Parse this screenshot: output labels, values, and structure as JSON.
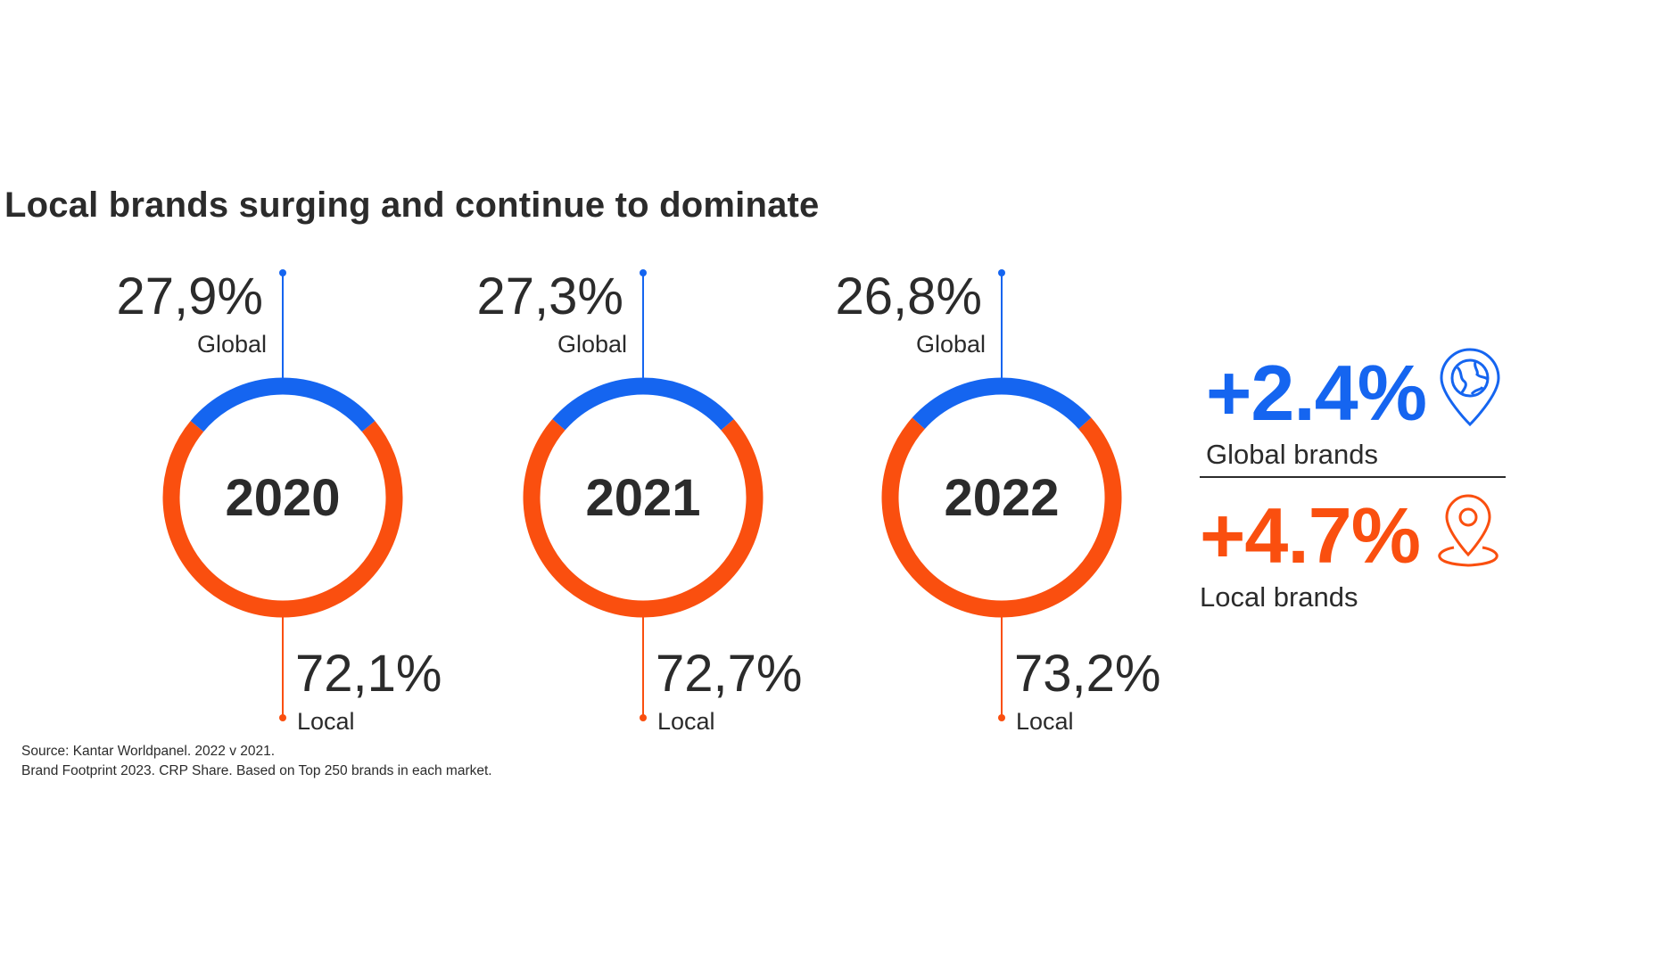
{
  "title": "Local brands surging and continue to dominate",
  "colors": {
    "global": "#1565f0",
    "local": "#fa4f0f",
    "text": "#2b2b2b"
  },
  "chart_data": [
    {
      "type": "pie",
      "center_label": "2020",
      "slices": [
        {
          "label": "Global",
          "value": 27.9,
          "value_label": "27,9%"
        },
        {
          "label": "Local",
          "value": 72.1,
          "value_label": "72,1%"
        }
      ]
    },
    {
      "type": "pie",
      "center_label": "2021",
      "slices": [
        {
          "label": "Global",
          "value": 27.3,
          "value_label": "27,3%"
        },
        {
          "label": "Local",
          "value": 72.7,
          "value_label": "72,7%"
        }
      ]
    },
    {
      "type": "pie",
      "center_label": "2022",
      "slices": [
        {
          "label": "Global",
          "value": 26.8,
          "value_label": "26,8%"
        },
        {
          "label": "Local",
          "value": 73.2,
          "value_label": "73,2%"
        }
      ]
    }
  ],
  "summary": {
    "global": {
      "change": "+2.4%",
      "label": "Global brands",
      "icon": "globe-pin-icon"
    },
    "local": {
      "change": "+4.7%",
      "label": "Local brands",
      "icon": "location-pin-icon"
    }
  },
  "source": {
    "line1": "Source: Kantar Worldpanel. 2022 v 2021.",
    "line2": "Brand Footprint 2023. CRP Share. Based on Top 250 brands in each market."
  }
}
